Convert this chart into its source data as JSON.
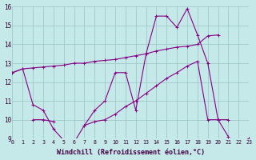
{
  "xlabel": "Windchill (Refroidissement éolien,°C)",
  "bg_color": "#c5e8e8",
  "line_color": "#880088",
  "grid_color": "#99c4c4",
  "x": [
    0,
    1,
    2,
    3,
    4,
    5,
    6,
    7,
    8,
    9,
    10,
    11,
    12,
    13,
    14,
    15,
    16,
    17,
    18,
    19,
    20,
    21,
    22,
    23
  ],
  "jagged": [
    12.5,
    12.7,
    10.8,
    10.5,
    9.5,
    8.9,
    8.8,
    9.7,
    10.5,
    11.0,
    12.5,
    12.5,
    10.5,
    13.5,
    15.5,
    15.5,
    14.9,
    15.9,
    14.5,
    13.0,
    10.0,
    10.0,
    null,
    9.0
  ],
  "upper_diag": [
    12.5,
    12.7,
    12.75,
    12.8,
    12.85,
    12.9,
    13.0,
    13.0,
    13.1,
    13.15,
    13.2,
    13.3,
    13.4,
    13.5,
    13.65,
    13.75,
    13.85,
    13.9,
    14.0,
    14.45,
    14.5,
    null,
    null,
    null
  ],
  "lower_diag": [
    null,
    null,
    10.0,
    10.0,
    9.9,
    null,
    null,
    9.7,
    9.9,
    10.0,
    10.3,
    10.7,
    11.0,
    11.4,
    11.8,
    12.2,
    12.5,
    12.85,
    13.1,
    10.0,
    10.0,
    9.1,
    null,
    9.0
  ],
  "ylim": [
    9,
    16
  ],
  "xlim": [
    0,
    23
  ],
  "yticks": [
    9,
    10,
    11,
    12,
    13,
    14,
    15,
    16
  ],
  "xticks": [
    0,
    1,
    2,
    3,
    4,
    5,
    6,
    7,
    8,
    9,
    10,
    11,
    12,
    13,
    14,
    15,
    16,
    17,
    18,
    19,
    20,
    21,
    22,
    23
  ]
}
